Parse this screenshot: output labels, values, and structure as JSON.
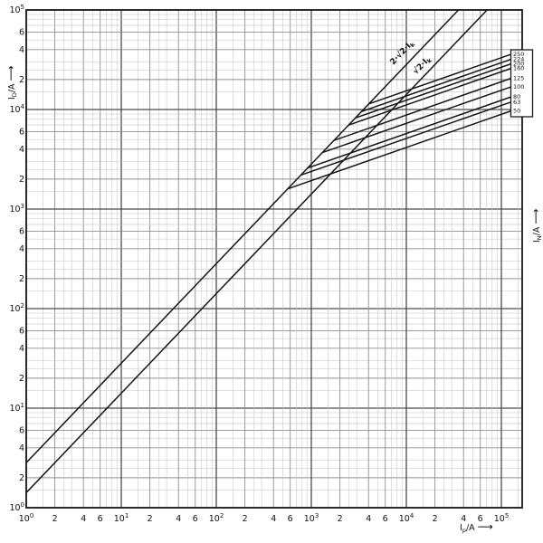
{
  "axis_titles": {
    "y": {
      "symbol": "I",
      "sub": "D",
      "unit": "/A",
      "arrow": "⟶"
    },
    "x": {
      "symbol": "I",
      "sub": "p",
      "unit": "/A",
      "arrow": "⟶"
    },
    "param": {
      "symbol": "I",
      "sub": "N",
      "unit": "/A",
      "arrow": "⟶"
    }
  },
  "chart_data": {
    "type": "line",
    "title": "",
    "xlabel": "Ip/A",
    "ylabel": "ID/A",
    "param_label": "IN/A",
    "x_scale": "log",
    "y_scale": "log",
    "x_range": [
      1,
      166000
    ],
    "y_range": [
      1,
      100000
    ],
    "x_axis": {
      "decade_exponents": [
        0,
        1,
        2,
        3,
        4,
        5
      ],
      "labeled_minors": [
        2,
        4,
        6
      ]
    },
    "y_axis": {
      "decade_exponents": [
        0,
        1,
        2,
        3,
        4,
        5
      ],
      "labeled_minors": [
        2,
        4,
        6
      ]
    },
    "grid": {
      "on": true,
      "minor_multiples": [
        1.5,
        2,
        2.5,
        3,
        4,
        5,
        6,
        7,
        8,
        9
      ]
    },
    "reference_lines": [
      {
        "name": "asym-peak-line",
        "label": "2·√2·I",
        "label_sub": "k",
        "factor": 2.828
      },
      {
        "name": "sym-peak-line",
        "label": "√2·I",
        "label_sub": "k",
        "factor": 1.414
      }
    ],
    "series": [
      {
        "rating": "250",
        "points": [
          [
            4025,
            11383
          ],
          [
            127000,
            35900
          ]
        ]
      },
      {
        "rating": "224",
        "points": [
          [
            3367,
            9522
          ],
          [
            127000,
            32000
          ]
        ]
      },
      {
        "rating": "200",
        "points": [
          [
            2911,
            8232
          ],
          [
            127000,
            28800
          ]
        ]
      },
      {
        "rating": "160",
        "points": [
          [
            2468,
            6979
          ],
          [
            127000,
            25900
          ]
        ]
      },
      {
        "rating": "125",
        "points": [
          [
            1729,
            4890
          ],
          [
            127000,
            20600
          ]
        ]
      },
      {
        "rating": "100",
        "points": [
          [
            1306,
            3693
          ],
          [
            127000,
            16900
          ]
        ]
      },
      {
        "rating": "80",
        "points": [
          [
            913,
            2582
          ],
          [
            127000,
            13400
          ]
        ]
      },
      {
        "rating": "63",
        "points": [
          [
            777,
            2197
          ],
          [
            127000,
            11900
          ]
        ]
      },
      {
        "rating": "50",
        "points": [
          [
            564,
            1595
          ],
          [
            127000,
            9700
          ]
        ]
      }
    ],
    "legend": {
      "position": "right-box",
      "values": [
        "250",
        "224",
        "200",
        "160",
        "125",
        "100",
        "80",
        "63",
        "50"
      ]
    },
    "colors": {
      "curve": "#151515",
      "text": "#111111",
      "grid_minor": "#c3c3c3",
      "grid_mid": "#8f8f8f",
      "grid_major": "#4a4a4a",
      "frame": "#1a1a1a",
      "legend_box_bg": "#ffffff"
    }
  }
}
